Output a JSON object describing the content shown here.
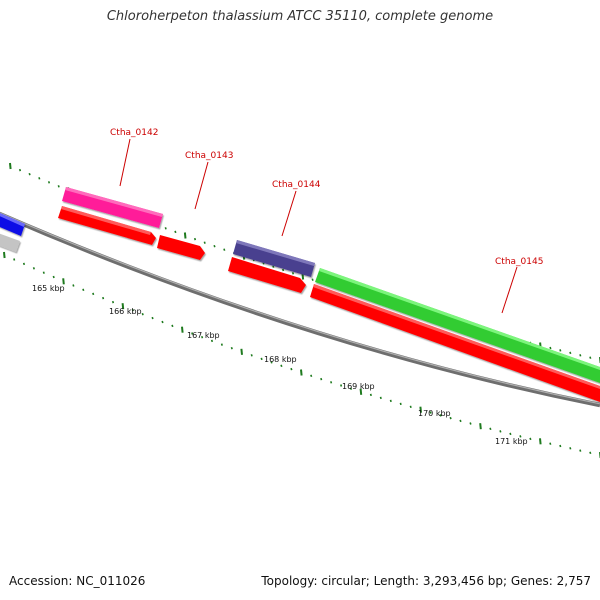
{
  "map": {
    "title": "Chloroherpeton thalassium ATCC 35110, complete genome",
    "accession_label": "Accession: NC_011026",
    "summary": "Topology: circular; Length: 3,293,456 bp; Genes: 2,757"
  },
  "colors": {
    "backbone": "#808080",
    "ticks": "#1e7a1e",
    "label_text": "#cc0000",
    "cds": "#ff0000",
    "blue_feature": "#0000ee",
    "grey_feature": "#c8c8c8",
    "magenta_feature": "#ff1493",
    "indigo_feature": "#483d8b",
    "green_feature": "#33cc33"
  },
  "gene_labels": [
    "Ctha_0142",
    "Ctha_0143",
    "Ctha_0144",
    "Ctha_0145"
  ],
  "kbp_labels": [
    "165 kbp",
    "166 kbp",
    "167 kbp",
    "168 kbp",
    "169 kbp",
    "170 kbp",
    "171 kbp"
  ]
}
